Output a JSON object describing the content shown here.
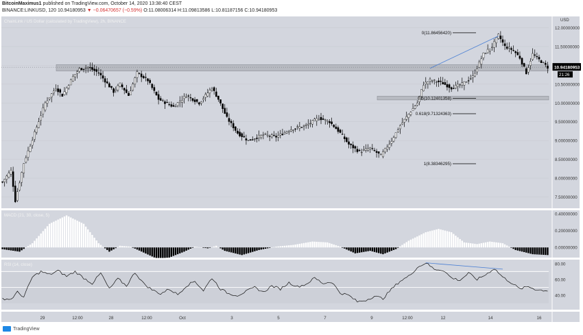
{
  "header": {
    "author": "BitcoinMaximus1",
    "published": "published on TradingView.com, October 14, 2020 13:38:40 CEST",
    "symbol": "BINANCE:LINKUSD, 120",
    "last": "10.94180953",
    "change": "▼ −0.06470657 (−0.59%)",
    "ohlc": "O:11.08006314 H:11.09813586 L:10.81187156 C:10.94180953"
  },
  "legend": {
    "main": "ChainLink / US Dollar (calculated by TradingView), 2h, BINANCE",
    "macd": "MACD (21, 30, close, 5)",
    "rsi": "RSI (14, close)"
  },
  "price_scale": {
    "unit": "USD",
    "current": "10.94180953",
    "countdown": "21:26"
  },
  "footer": {
    "brand": "TradingView"
  },
  "colors": {
    "background": "#d3d6de",
    "up": "#ffffff",
    "down": "#000000",
    "trendline": "#4a7fd4",
    "zone": "#b7bac1"
  },
  "chart_data": [
    {
      "type": "candlestick",
      "title": "ChainLink / US Dollar (calculated by TradingView), 2h, BINANCE",
      "ylabel": "USD",
      "ylim": [
        7.2,
        12.3
      ],
      "yticks": [
        "7.50000000",
        "8.00000000",
        "8.50000000",
        "9.00000000",
        "9.50000000",
        "10.00000000",
        "10.50000000",
        "11.00000000",
        "11.50000000",
        "12.00000000"
      ],
      "x_tick_labels": [
        "29",
        "12:00",
        "28",
        "12:00",
        "Oct",
        "3",
        "5",
        "7",
        "9",
        "12:00",
        "12",
        "14",
        "16"
      ],
      "close_path": [
        [
          0,
          7.9
        ],
        [
          4,
          8.2
        ],
        [
          6,
          7.4
        ],
        [
          10,
          8.4
        ],
        [
          15,
          9.2
        ],
        [
          20,
          10.0
        ],
        [
          25,
          10.4
        ],
        [
          28,
          10.2
        ],
        [
          33,
          10.7
        ],
        [
          36,
          10.9
        ],
        [
          40,
          10.95
        ],
        [
          45,
          10.8
        ],
        [
          52,
          10.3
        ],
        [
          55,
          10.5
        ],
        [
          59,
          10.2
        ],
        [
          63,
          10.8
        ],
        [
          68,
          10.6
        ],
        [
          73,
          10.1
        ],
        [
          80,
          9.9
        ],
        [
          86,
          10.2
        ],
        [
          92,
          10.0
        ],
        [
          98,
          10.4
        ],
        [
          101,
          10.1
        ],
        [
          105,
          9.6
        ],
        [
          110,
          9.2
        ],
        [
          115,
          9.0
        ],
        [
          122,
          9.15
        ],
        [
          128,
          9.1
        ],
        [
          135,
          9.3
        ],
        [
          142,
          9.4
        ],
        [
          148,
          9.6
        ],
        [
          153,
          9.5
        ],
        [
          158,
          9.2
        ],
        [
          162,
          8.9
        ],
        [
          167,
          8.7
        ],
        [
          172,
          8.8
        ],
        [
          177,
          8.6
        ],
        [
          182,
          9.0
        ],
        [
          186,
          9.4
        ],
        [
          190,
          9.7
        ],
        [
          194,
          10.0
        ],
        [
          197,
          10.5
        ],
        [
          200,
          10.6
        ],
        [
          205,
          10.55
        ],
        [
          210,
          10.4
        ],
        [
          215,
          10.5
        ],
        [
          220,
          10.7
        ],
        [
          225,
          11.3
        ],
        [
          229,
          11.5
        ],
        [
          232,
          11.8
        ],
        [
          235,
          11.5
        ],
        [
          239,
          11.4
        ],
        [
          242,
          11.2
        ],
        [
          245,
          10.8
        ],
        [
          248,
          11.3
        ],
        [
          252,
          11.1
        ],
        [
          255,
          10.95
        ]
      ],
      "horizontal_zones": [
        {
          "from": 10.85,
          "to": 11.02
        },
        {
          "from": 10.08,
          "to": 10.18
        }
      ],
      "fibonacci_levels": [
        {
          "label": "0(11.86456420)",
          "value": 11.8645642
        },
        {
          "label": "0.5(10.12401358)",
          "value": 10.12401358
        },
        {
          "label": "0.618(9.71324363)",
          "value": 9.71324363
        },
        {
          "label": "1(8.38346295)",
          "value": 8.38346295
        }
      ],
      "trendline": [
        [
          200,
          10.92
        ],
        [
          232,
          11.78
        ]
      ]
    },
    {
      "type": "bar",
      "title": "MACD (21, 30, close, 5)",
      "ylim": [
        -0.12,
        0.44
      ],
      "yticks": [
        "0.40000000",
        "0.20000000",
        "0.00000000"
      ],
      "histogram_path": [
        [
          0,
          -0.02
        ],
        [
          8,
          -0.05
        ],
        [
          14,
          0.05
        ],
        [
          22,
          0.28
        ],
        [
          30,
          0.38
        ],
        [
          38,
          0.28
        ],
        [
          45,
          0.05
        ],
        [
          50,
          -0.05
        ],
        [
          55,
          0.02
        ],
        [
          60,
          0.01
        ],
        [
          66,
          -0.06
        ],
        [
          72,
          -0.13
        ],
        [
          78,
          -0.12
        ],
        [
          85,
          -0.05
        ],
        [
          90,
          0.01
        ],
        [
          96,
          -0.01
        ],
        [
          100,
          0.02
        ],
        [
          104,
          -0.04
        ],
        [
          112,
          -0.09
        ],
        [
          120,
          -0.03
        ],
        [
          128,
          0.01
        ],
        [
          136,
          0.03
        ],
        [
          145,
          0.07
        ],
        [
          152,
          0.06
        ],
        [
          158,
          0.01
        ],
        [
          165,
          -0.07
        ],
        [
          172,
          -0.04
        ],
        [
          178,
          -0.08
        ],
        [
          184,
          -0.02
        ],
        [
          190,
          0.08
        ],
        [
          198,
          0.18
        ],
        [
          204,
          0.22
        ],
        [
          210,
          0.18
        ],
        [
          216,
          0.06
        ],
        [
          222,
          0.04
        ],
        [
          228,
          0.07
        ],
        [
          234,
          0.05
        ],
        [
          240,
          -0.03
        ],
        [
          248,
          -0.08
        ],
        [
          255,
          -0.09
        ]
      ]
    },
    {
      "type": "line",
      "title": "RSI (14, close)",
      "ylim": [
        22,
        85
      ],
      "yticks": [
        "80.00",
        "60.00",
        "40.00"
      ],
      "bands": [
        70,
        50
      ],
      "rsi_path": [
        [
          0,
          36
        ],
        [
          4,
          35
        ],
        [
          7,
          44
        ],
        [
          10,
          38
        ],
        [
          14,
          63
        ],
        [
          18,
          70
        ],
        [
          22,
          66
        ],
        [
          26,
          71
        ],
        [
          30,
          64
        ],
        [
          34,
          70
        ],
        [
          38,
          62
        ],
        [
          42,
          55
        ],
        [
          46,
          68
        ],
        [
          50,
          48
        ],
        [
          54,
          61
        ],
        [
          58,
          52
        ],
        [
          62,
          69
        ],
        [
          66,
          55
        ],
        [
          70,
          47
        ],
        [
          74,
          42
        ],
        [
          78,
          48
        ],
        [
          82,
          41
        ],
        [
          86,
          52
        ],
        [
          90,
          58
        ],
        [
          94,
          46
        ],
        [
          98,
          62
        ],
        [
          102,
          48
        ],
        [
          106,
          42
        ],
        [
          110,
          40
        ],
        [
          114,
          45
        ],
        [
          118,
          50
        ],
        [
          122,
          44
        ],
        [
          126,
          52
        ],
        [
          130,
          48
        ],
        [
          134,
          56
        ],
        [
          138,
          51
        ],
        [
          142,
          54
        ],
        [
          146,
          62
        ],
        [
          150,
          55
        ],
        [
          154,
          57
        ],
        [
          158,
          43
        ],
        [
          162,
          40
        ],
        [
          166,
          32
        ],
        [
          170,
          34
        ],
        [
          174,
          39
        ],
        [
          178,
          36
        ],
        [
          182,
          48
        ],
        [
          186,
          58
        ],
        [
          190,
          64
        ],
        [
          194,
          75
        ],
        [
          198,
          81
        ],
        [
          202,
          73
        ],
        [
          206,
          72
        ],
        [
          210,
          62
        ],
        [
          214,
          59
        ],
        [
          218,
          68
        ],
        [
          222,
          60
        ],
        [
          226,
          66
        ],
        [
          230,
          74
        ],
        [
          234,
          63
        ],
        [
          238,
          56
        ],
        [
          242,
          48
        ],
        [
          246,
          51
        ],
        [
          250,
          47
        ],
        [
          255,
          46
        ]
      ],
      "trendline": [
        [
          198,
          81
        ],
        [
          234,
          73
        ]
      ]
    }
  ]
}
